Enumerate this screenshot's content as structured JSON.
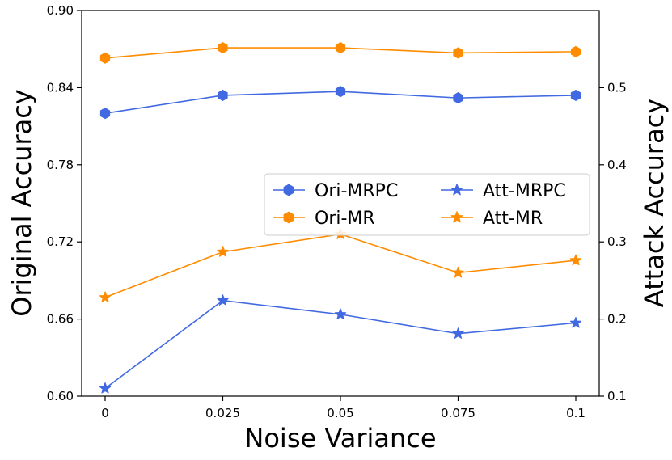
{
  "chart_data": {
    "type": "line",
    "x": [
      0,
      0.025,
      0.05,
      0.075,
      0.1
    ],
    "x_tick_labels": [
      "0",
      "0.025",
      "0.05",
      "0.075",
      "0.1"
    ],
    "xlabel": "Noise Variance",
    "ylabel_left": "Original Accuracy",
    "ylabel_right": "Attack Accuracy",
    "ylim_left": [
      0.6,
      0.9
    ],
    "ylim_right": [
      0.1,
      0.6
    ],
    "y_left_ticks": [
      "0.60",
      "0.66",
      "0.72",
      "0.78",
      "0.84",
      "0.90"
    ],
    "y_right_ticks": [
      "0.1",
      "0.2",
      "0.3",
      "0.4",
      "0.5"
    ],
    "grid": false,
    "legend_placement": "center-right",
    "series": [
      {
        "name": "Ori-MRPC",
        "axis": "left",
        "marker": "hexagon",
        "color": "#4169e1",
        "values": [
          0.82,
          0.834,
          0.837,
          0.832,
          0.834
        ]
      },
      {
        "name": "Ori-MR",
        "axis": "left",
        "marker": "hexagon",
        "color": "#ff8c00",
        "values": [
          0.863,
          0.871,
          0.871,
          0.867,
          0.868
        ]
      },
      {
        "name": "Att-MRPC",
        "axis": "right",
        "marker": "star",
        "color": "#4169e1",
        "values": [
          0.11,
          0.224,
          0.206,
          0.181,
          0.195
        ]
      },
      {
        "name": "Att-MR",
        "axis": "right",
        "marker": "star",
        "color": "#ff8c00",
        "values": [
          0.228,
          0.287,
          0.31,
          0.26,
          0.276
        ]
      }
    ]
  }
}
